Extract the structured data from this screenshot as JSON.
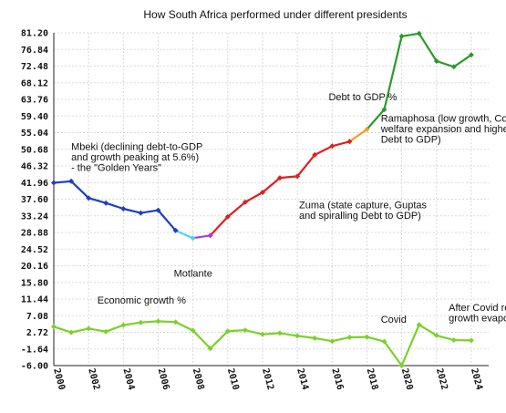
{
  "chart_data": {
    "type": "line",
    "title": "How South Africa performed under different presidents",
    "xlabel": "",
    "ylabel": "",
    "xlim": [
      2000,
      2025
    ],
    "ylim": [
      -6.0,
      81.2
    ],
    "yticks": [
      "81.20",
      "76.84",
      "72.48",
      "68.12",
      "63.76",
      "59.40",
      "55.04",
      "50.68",
      "46.32",
      "41.96",
      "37.60",
      "33.24",
      "28.88",
      "24.52",
      "20.16",
      "15.80",
      "11.44",
      "7.08",
      "2.72",
      "-1.64",
      "-6.00"
    ],
    "xticks": [
      "2000",
      "2002",
      "2004",
      "2006",
      "2008",
      "2010",
      "2012",
      "2014",
      "2016",
      "2018",
      "2020",
      "2022",
      "2024"
    ],
    "grid": true,
    "series": [
      {
        "name": "Debt to GDP %",
        "color": "#2b9a2b",
        "x": [
          2000,
          2001,
          2002,
          2003,
          2004,
          2005,
          2006,
          2007,
          2008,
          2009,
          2010,
          2011,
          2012,
          2013,
          2014,
          2015,
          2016,
          2017,
          2018,
          2019,
          2020,
          2021,
          2022,
          2023,
          2024
        ],
        "values": [
          41.9,
          42.3,
          37.9,
          36.6,
          35.1,
          34.0,
          34.7,
          29.4,
          27.4,
          28.1,
          33.0,
          36.8,
          39.4,
          43.2,
          43.6,
          49.2,
          51.5,
          52.7,
          55.9,
          61.1,
          80.3,
          81.0,
          73.8,
          72.3,
          75.4
        ],
        "segments": [
          {
            "president": "Mbeki",
            "from": 2000,
            "to": 2007,
            "color": "#1f3fbf"
          },
          {
            "president": "Motlante",
            "from": 2007,
            "to": 2008,
            "color": "#4fd3ef"
          },
          {
            "president": "Motlante",
            "from": 2008,
            "to": 2009,
            "color": "#a33fd6"
          },
          {
            "president": "Zuma",
            "from": 2009,
            "to": 2017,
            "color": "#dd2020"
          },
          {
            "president": "Zuma",
            "from": 2017,
            "to": 2018,
            "color": "#f5a020"
          },
          {
            "president": "Ramaphosa",
            "from": 2018,
            "to": 2024,
            "color": "#2b9a2b"
          }
        ]
      },
      {
        "name": "Economic growth %",
        "color": "#7bd12a",
        "x": [
          2000,
          2001,
          2002,
          2003,
          2004,
          2005,
          2006,
          2007,
          2008,
          2009,
          2010,
          2011,
          2012,
          2013,
          2014,
          2015,
          2016,
          2017,
          2018,
          2019,
          2020,
          2021,
          2022,
          2023,
          2024
        ],
        "values": [
          4.2,
          2.7,
          3.7,
          2.9,
          4.6,
          5.3,
          5.6,
          5.4,
          3.2,
          -1.5,
          3.0,
          3.3,
          2.2,
          2.5,
          1.8,
          1.2,
          0.4,
          1.4,
          1.5,
          0.3,
          -6.0,
          4.7,
          1.9,
          0.7,
          0.6
        ]
      }
    ],
    "annotations": [
      {
        "id": "mbeki",
        "lines": [
          "Mbeki (declining debt-to-GDP",
          "and growth peaking at 5.6%)",
          "- the \"Golden Years\""
        ],
        "x": 2001,
        "y": 50.5
      },
      {
        "id": "motlante",
        "lines": [
          "Motlante"
        ],
        "x": 2006.9,
        "y": 17.3
      },
      {
        "id": "zuma",
        "lines": [
          "Zuma (state capture, Guptas",
          "and spiralling Debt to GDP)"
        ],
        "x": 2014.1,
        "y": 35.2
      },
      {
        "id": "debt",
        "lines": [
          "Debt to GDP %"
        ],
        "x": 2015.8,
        "y": 63.5
      },
      {
        "id": "ramaphosa",
        "lines": [
          "Ramaphosa (low growth, Covid",
          "welfare expansion and higher",
          "Debt to GDP)"
        ],
        "x": 2018.8,
        "y": 57.9
      },
      {
        "id": "growth",
        "lines": [
          "Economic growth %"
        ],
        "x": 2002.5,
        "y": 10.2
      },
      {
        "id": "covid",
        "lines": [
          "Covid"
        ],
        "x": 2018.8,
        "y": 5.2
      },
      {
        "id": "rebound",
        "lines": [
          "After Covid rebound,",
          "growth evaporates"
        ],
        "x": 2022.7,
        "y": 8.3
      }
    ]
  }
}
